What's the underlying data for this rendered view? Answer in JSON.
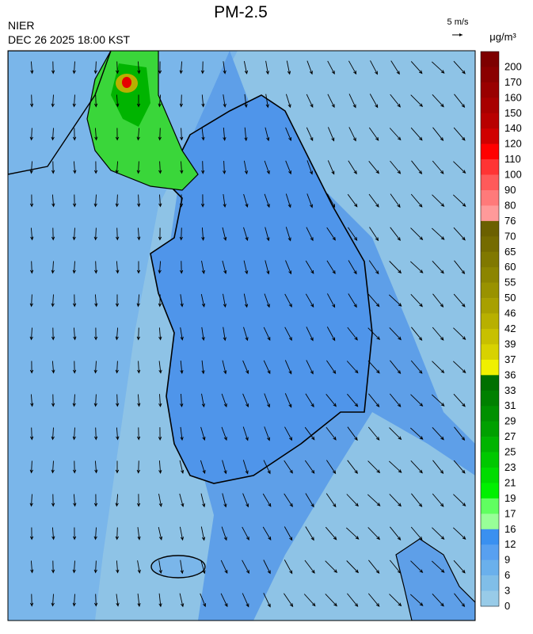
{
  "header": {
    "title": "PM-2.5",
    "agency": "NIER",
    "timestamp": "DEC 26 2025 18:00 KST"
  },
  "wind_scale": "5 m/s",
  "legend": {
    "unit": "μg/m³",
    "levels": [
      200,
      170,
      160,
      150,
      140,
      120,
      110,
      100,
      90,
      80,
      76,
      70,
      65,
      60,
      55,
      50,
      46,
      42,
      39,
      37,
      36,
      33,
      31,
      29,
      27,
      25,
      23,
      21,
      19,
      17,
      16,
      12,
      9,
      6,
      3,
      0
    ],
    "colors": [
      "#7d0000",
      "#8a0000",
      "#990000",
      "#a80000",
      "#b80000",
      "#d00000",
      "#ff0000",
      "#ff3434",
      "#ff5a5a",
      "#ff7a7a",
      "#ff9a9a",
      "#6b6000",
      "#756b00",
      "#807800",
      "#8c8500",
      "#999200",
      "#a8a000",
      "#b8b000",
      "#c8c000",
      "#d8d200",
      "#f0f000",
      "#007000",
      "#008000",
      "#009000",
      "#00a000",
      "#00b400",
      "#00c800",
      "#00dc00",
      "#00f000",
      "#60ff60",
      "#98ff98",
      "#3a90f0",
      "#58a0f0",
      "#6ab0ec",
      "#80bee8",
      "#98cbe8"
    ]
  }
}
